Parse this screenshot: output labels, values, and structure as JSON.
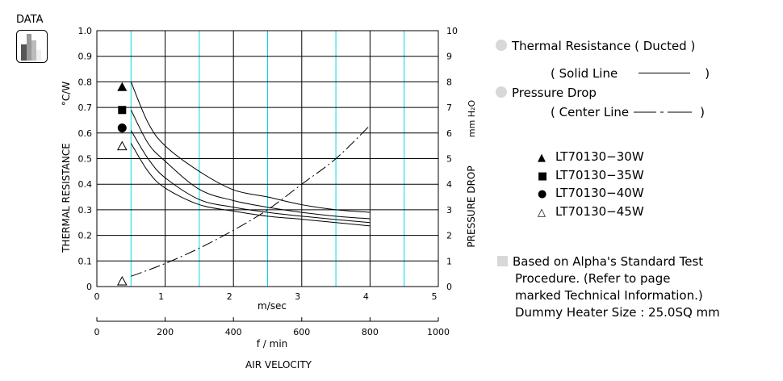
{
  "logo_label": "DATA",
  "chart_data": {
    "type": "line",
    "xlabel": "m/sec",
    "xlim": [
      0,
      5
    ],
    "xticks": [
      0,
      1,
      2,
      3,
      4,
      5
    ],
    "x2label": "f / min",
    "x2lim": [
      0,
      1000
    ],
    "x2ticks": [
      0,
      200,
      400,
      600,
      800,
      1000
    ],
    "axis_title": "AIR VELOCITY",
    "ylabel": "THERMAL  RESISTANCE",
    "yunit": "°C/W",
    "ylim": [
      0,
      1.0
    ],
    "yticks": [
      "0",
      "0.1",
      "0.2",
      "0.3",
      "0.4",
      "0.5",
      "0.6",
      "0.7",
      "0.8",
      "0.9",
      "1.0"
    ],
    "y2label": "PRESSURE  DROP",
    "y2unit": "mm H₂O",
    "y2lim": [
      0,
      10
    ],
    "y2ticks": [
      "0",
      "1",
      "2",
      "3",
      "4",
      "5",
      "6",
      "7",
      "8",
      "9",
      "10"
    ],
    "grid": true,
    "cyan_gridlines_x": [
      0.5,
      1.5,
      2.5,
      3.5,
      4.5
    ],
    "series": [
      {
        "name": "LT70130−30W",
        "marker": "filled-triangle",
        "marker_value": 0.78,
        "style": "solid",
        "x": [
          0.5,
          0.75,
          1,
          1.5,
          2,
          2.5,
          3,
          3.5,
          4
        ],
        "y": [
          0.8,
          0.64,
          0.55,
          0.45,
          0.378,
          0.35,
          0.32,
          0.3,
          0.29
        ]
      },
      {
        "name": "LT70130−35W",
        "marker": "filled-square",
        "marker_value": 0.69,
        "style": "solid",
        "x": [
          0.5,
          0.75,
          1,
          1.5,
          2,
          2.5,
          3,
          3.5,
          4
        ],
        "y": [
          0.69,
          0.56,
          0.49,
          0.38,
          0.336,
          0.31,
          0.29,
          0.275,
          0.265
        ]
      },
      {
        "name": "LT70130−40W",
        "marker": "filled-circle",
        "marker_value": 0.62,
        "style": "solid",
        "x": [
          0.5,
          0.75,
          1,
          1.5,
          2,
          2.5,
          3,
          3.5,
          4
        ],
        "y": [
          0.61,
          0.5,
          0.425,
          0.34,
          0.31,
          0.29,
          0.275,
          0.262,
          0.25
        ]
      },
      {
        "name": "LT70130−45W",
        "marker": "open-triangle",
        "marker_value": 0.55,
        "style": "solid",
        "x": [
          0.5,
          0.75,
          1,
          1.5,
          2,
          2.5,
          3,
          3.5,
          4
        ],
        "y": [
          0.56,
          0.45,
          0.385,
          0.32,
          0.295,
          0.275,
          0.263,
          0.25,
          0.237
        ]
      },
      {
        "name": "Pressure Drop",
        "marker": "open-triangle",
        "marker_value": 0.2,
        "style": "dashdot",
        "axis": "right",
        "x": [
          0.5,
          1,
          1.5,
          2,
          2.5,
          3,
          3.5,
          4
        ],
        "y": [
          0.4,
          0.9,
          1.5,
          2.2,
          3.0,
          4.0,
          5.0,
          6.3
        ]
      }
    ]
  },
  "legend": {
    "thermal": "Thermal Resistance ( Ducted )",
    "solid_open": "( Solid Line",
    "close": ")",
    "pressure": "Pressure Drop",
    "center_open": "( Center Line",
    "models": [
      "LT70130−30W",
      "LT70130−35W",
      "LT70130−40W",
      "LT70130−45W"
    ],
    "model_markers": [
      "▲",
      "■",
      "●",
      "△"
    ],
    "note": [
      "Based on Alpha's Standard Test",
      "Procedure.  (Refer to page",
      "marked Technical Information.)",
      "Dummy Heater Size :   25.0SQ mm"
    ]
  }
}
